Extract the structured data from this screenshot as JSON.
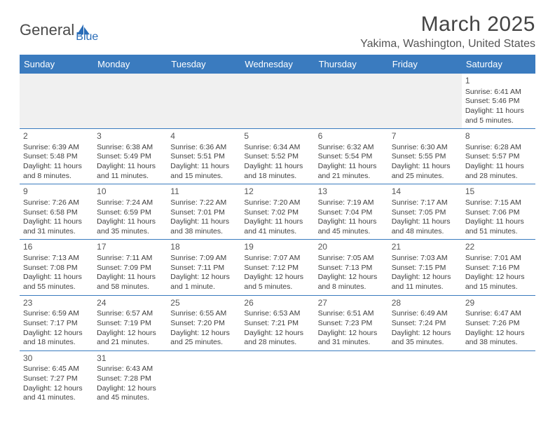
{
  "logo": {
    "text_a": "Genera",
    "text_b": "l",
    "text_c": "Blue"
  },
  "title": "March 2025",
  "location": "Yakima, Washington, United States",
  "colors": {
    "header_bg": "#3a7bbf",
    "header_text": "#ffffff",
    "cell_border": "#3a7bbf",
    "blank_bg": "#f0f0f0",
    "text": "#404040",
    "logo_blue": "#2a6db8",
    "logo_gray": "#4a4a4a"
  },
  "day_headers": [
    "Sunday",
    "Monday",
    "Tuesday",
    "Wednesday",
    "Thursday",
    "Friday",
    "Saturday"
  ],
  "weeks": [
    [
      null,
      null,
      null,
      null,
      null,
      null,
      {
        "n": "1",
        "sunrise": "6:41 AM",
        "sunset": "5:46 PM",
        "daylight": "11 hours and 5 minutes."
      }
    ],
    [
      {
        "n": "2",
        "sunrise": "6:39 AM",
        "sunset": "5:48 PM",
        "daylight": "11 hours and 8 minutes."
      },
      {
        "n": "3",
        "sunrise": "6:38 AM",
        "sunset": "5:49 PM",
        "daylight": "11 hours and 11 minutes."
      },
      {
        "n": "4",
        "sunrise": "6:36 AM",
        "sunset": "5:51 PM",
        "daylight": "11 hours and 15 minutes."
      },
      {
        "n": "5",
        "sunrise": "6:34 AM",
        "sunset": "5:52 PM",
        "daylight": "11 hours and 18 minutes."
      },
      {
        "n": "6",
        "sunrise": "6:32 AM",
        "sunset": "5:54 PM",
        "daylight": "11 hours and 21 minutes."
      },
      {
        "n": "7",
        "sunrise": "6:30 AM",
        "sunset": "5:55 PM",
        "daylight": "11 hours and 25 minutes."
      },
      {
        "n": "8",
        "sunrise": "6:28 AM",
        "sunset": "5:57 PM",
        "daylight": "11 hours and 28 minutes."
      }
    ],
    [
      {
        "n": "9",
        "sunrise": "7:26 AM",
        "sunset": "6:58 PM",
        "daylight": "11 hours and 31 minutes."
      },
      {
        "n": "10",
        "sunrise": "7:24 AM",
        "sunset": "6:59 PM",
        "daylight": "11 hours and 35 minutes."
      },
      {
        "n": "11",
        "sunrise": "7:22 AM",
        "sunset": "7:01 PM",
        "daylight": "11 hours and 38 minutes."
      },
      {
        "n": "12",
        "sunrise": "7:20 AM",
        "sunset": "7:02 PM",
        "daylight": "11 hours and 41 minutes."
      },
      {
        "n": "13",
        "sunrise": "7:19 AM",
        "sunset": "7:04 PM",
        "daylight": "11 hours and 45 minutes."
      },
      {
        "n": "14",
        "sunrise": "7:17 AM",
        "sunset": "7:05 PM",
        "daylight": "11 hours and 48 minutes."
      },
      {
        "n": "15",
        "sunrise": "7:15 AM",
        "sunset": "7:06 PM",
        "daylight": "11 hours and 51 minutes."
      }
    ],
    [
      {
        "n": "16",
        "sunrise": "7:13 AM",
        "sunset": "7:08 PM",
        "daylight": "11 hours and 55 minutes."
      },
      {
        "n": "17",
        "sunrise": "7:11 AM",
        "sunset": "7:09 PM",
        "daylight": "11 hours and 58 minutes."
      },
      {
        "n": "18",
        "sunrise": "7:09 AM",
        "sunset": "7:11 PM",
        "daylight": "12 hours and 1 minute."
      },
      {
        "n": "19",
        "sunrise": "7:07 AM",
        "sunset": "7:12 PM",
        "daylight": "12 hours and 5 minutes."
      },
      {
        "n": "20",
        "sunrise": "7:05 AM",
        "sunset": "7:13 PM",
        "daylight": "12 hours and 8 minutes."
      },
      {
        "n": "21",
        "sunrise": "7:03 AM",
        "sunset": "7:15 PM",
        "daylight": "12 hours and 11 minutes."
      },
      {
        "n": "22",
        "sunrise": "7:01 AM",
        "sunset": "7:16 PM",
        "daylight": "12 hours and 15 minutes."
      }
    ],
    [
      {
        "n": "23",
        "sunrise": "6:59 AM",
        "sunset": "7:17 PM",
        "daylight": "12 hours and 18 minutes."
      },
      {
        "n": "24",
        "sunrise": "6:57 AM",
        "sunset": "7:19 PM",
        "daylight": "12 hours and 21 minutes."
      },
      {
        "n": "25",
        "sunrise": "6:55 AM",
        "sunset": "7:20 PM",
        "daylight": "12 hours and 25 minutes."
      },
      {
        "n": "26",
        "sunrise": "6:53 AM",
        "sunset": "7:21 PM",
        "daylight": "12 hours and 28 minutes."
      },
      {
        "n": "27",
        "sunrise": "6:51 AM",
        "sunset": "7:23 PM",
        "daylight": "12 hours and 31 minutes."
      },
      {
        "n": "28",
        "sunrise": "6:49 AM",
        "sunset": "7:24 PM",
        "daylight": "12 hours and 35 minutes."
      },
      {
        "n": "29",
        "sunrise": "6:47 AM",
        "sunset": "7:26 PM",
        "daylight": "12 hours and 38 minutes."
      }
    ],
    [
      {
        "n": "30",
        "sunrise": "6:45 AM",
        "sunset": "7:27 PM",
        "daylight": "12 hours and 41 minutes."
      },
      {
        "n": "31",
        "sunrise": "6:43 AM",
        "sunset": "7:28 PM",
        "daylight": "12 hours and 45 minutes."
      },
      null,
      null,
      null,
      null,
      null
    ]
  ],
  "labels": {
    "sunrise": "Sunrise:",
    "sunset": "Sunset:",
    "daylight": "Daylight:"
  }
}
